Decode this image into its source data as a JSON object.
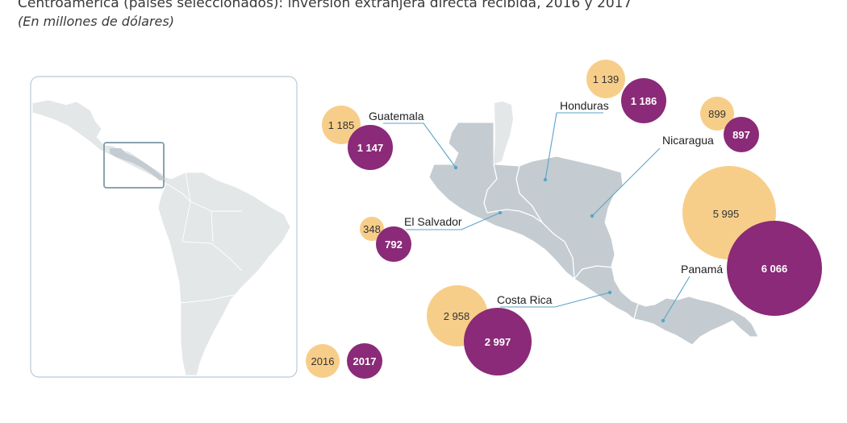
{
  "title": "Centroamérica (países seleccionados): inversión extranjera directa recibida, 2016 y 2017",
  "subtitle": "(En millones de dólares)",
  "colors": {
    "year_2016": "#f7ce89",
    "year_2017": "#8a2a78",
    "land_highlight": "#c4ccd1",
    "land_context": "#e3e7e8",
    "leader_line": "#5aa3c8"
  },
  "legend": {
    "year_2016": "2016",
    "year_2017": "2017"
  },
  "countries": [
    {
      "key": "guatemala",
      "name": "Guatemala",
      "v2016": "1 185",
      "v2017": "1 147"
    },
    {
      "key": "honduras",
      "name": "Honduras",
      "v2016": "1 139",
      "v2017": "1 186"
    },
    {
      "key": "nicaragua",
      "name": "Nicaragua",
      "v2016": "899",
      "v2017": "897"
    },
    {
      "key": "el_salvador",
      "name": "El Salvador",
      "v2016": "348",
      "v2017": "792"
    },
    {
      "key": "costa_rica",
      "name": "Costa Rica",
      "v2016": "2 958",
      "v2017": "2 997"
    },
    {
      "key": "panama",
      "name": "Panamá",
      "v2016": "5 995",
      "v2017": "6 066"
    }
  ]
}
